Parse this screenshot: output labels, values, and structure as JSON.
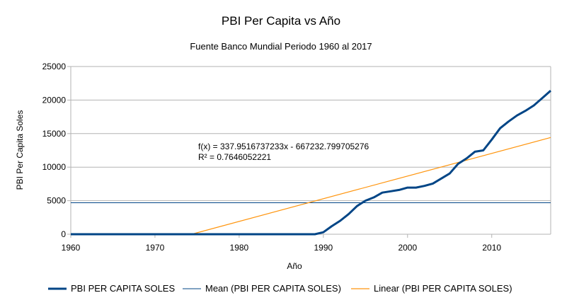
{
  "chart_data": {
    "type": "line",
    "title": "PBI Per Capita vs Año",
    "subtitle": "Fuente Banco Mundial Periodo 1960 al 2017",
    "xlabel": "Año",
    "ylabel": "PBI Per Capita Soles",
    "xlim": [
      1960,
      2017
    ],
    "ylim": [
      0,
      25000
    ],
    "x_ticks": [
      1960,
      1970,
      1980,
      1990,
      2000,
      2010
    ],
    "y_ticks": [
      0,
      5000,
      10000,
      15000,
      20000,
      25000
    ],
    "grid": "horizontal",
    "legend_position": "bottom",
    "series": [
      {
        "name": "PBI PER CAPITA SOLES",
        "color": "#004586",
        "x": [
          1960,
          1961,
          1962,
          1963,
          1964,
          1965,
          1966,
          1967,
          1968,
          1969,
          1970,
          1971,
          1972,
          1973,
          1974,
          1975,
          1976,
          1977,
          1978,
          1979,
          1980,
          1981,
          1982,
          1983,
          1984,
          1985,
          1986,
          1987,
          1988,
          1989,
          1990,
          1991,
          1992,
          1993,
          1994,
          1995,
          1996,
          1997,
          1998,
          1999,
          2000,
          2001,
          2002,
          2003,
          2004,
          2005,
          2006,
          2007,
          2008,
          2009,
          2010,
          2011,
          2012,
          2013,
          2014,
          2015,
          2016,
          2017
        ],
        "y": [
          0,
          0,
          0,
          0,
          0,
          0,
          0,
          0,
          0,
          0,
          0,
          0,
          0,
          0,
          0,
          0,
          0,
          0,
          0,
          0,
          0,
          0,
          0,
          0,
          0,
          0,
          0,
          0,
          0,
          0,
          300,
          1200,
          2000,
          3000,
          4200,
          5000,
          5500,
          6200,
          6400,
          6600,
          6950,
          6950,
          7200,
          7550,
          8300,
          9050,
          10500,
          11300,
          12300,
          12500,
          14100,
          15800,
          16800,
          17700,
          18400,
          19200,
          20300,
          21400
        ]
      },
      {
        "name": "Mean (PBI PER CAPITA SOLES)",
        "color": "#004586",
        "value": 4700
      },
      {
        "name": "Linear (PBI PER CAPITA SOLES)",
        "color": "#ff950e",
        "slope": 337.9516737233,
        "intercept": -667232.799705276
      }
    ],
    "annotation": {
      "equation": "f(x) = 337.9516737233x - 667232.799705276",
      "r_squared": "R² = 0.7646052221"
    }
  }
}
